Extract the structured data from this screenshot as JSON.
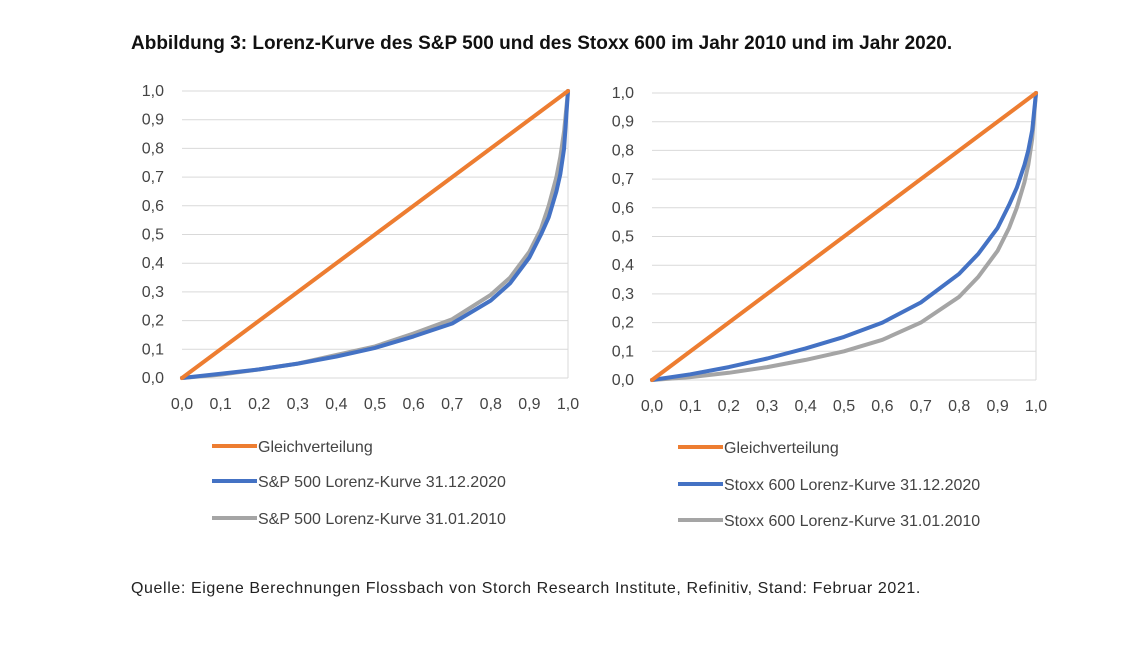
{
  "title": "Abbildung 3: Lorenz-Kurve des S&P 500 und des Stoxx 600 im Jahr 2010 und im Jahr 2020.",
  "source": "Quelle: Eigene Berechnungen Flossbach von Storch Research Institute, Refinitiv, Stand: Februar 2021.",
  "colors": {
    "equal": "#ED7D31",
    "recent": "#4472C4",
    "old": "#A5A5A5",
    "grid": "#D9D9D9"
  },
  "chart_data": [
    {
      "type": "line",
      "xlim": [
        0,
        1
      ],
      "ylim": [
        0,
        1
      ],
      "x_ticks": [
        "0,0",
        "0,1",
        "0,2",
        "0,3",
        "0,4",
        "0,5",
        "0,6",
        "0,7",
        "0,8",
        "0,9",
        "1,0"
      ],
      "y_ticks": [
        "0,0",
        "0,1",
        "0,2",
        "0,3",
        "0,4",
        "0,5",
        "0,6",
        "0,7",
        "0,8",
        "0,9",
        "1,0"
      ],
      "grid": true,
      "legend_position": "bottom",
      "series": [
        {
          "name": "Gleichverteilung",
          "color": "#ED7D31",
          "x": [
            0,
            1
          ],
          "y": [
            0,
            1
          ]
        },
        {
          "name": "S&P 500 Lorenz-Kurve 31.12.2020",
          "color": "#4472C4",
          "x": [
            0,
            0.1,
            0.2,
            0.3,
            0.4,
            0.5,
            0.6,
            0.7,
            0.8,
            0.85,
            0.9,
            0.93,
            0.95,
            0.97,
            0.98,
            0.99,
            1.0
          ],
          "y": [
            0,
            0.015,
            0.03,
            0.05,
            0.075,
            0.105,
            0.145,
            0.19,
            0.27,
            0.33,
            0.42,
            0.5,
            0.56,
            0.65,
            0.71,
            0.8,
            1.0
          ]
        },
        {
          "name": "S&P 500 Lorenz-Kurve 31.01.2010",
          "color": "#A5A5A5",
          "x": [
            0,
            0.1,
            0.2,
            0.3,
            0.4,
            0.5,
            0.6,
            0.7,
            0.8,
            0.85,
            0.9,
            0.93,
            0.95,
            0.97,
            0.98,
            0.99,
            1.0
          ],
          "y": [
            0,
            0.012,
            0.03,
            0.05,
            0.08,
            0.11,
            0.155,
            0.205,
            0.29,
            0.35,
            0.44,
            0.52,
            0.6,
            0.7,
            0.77,
            0.86,
            1.0
          ]
        }
      ]
    },
    {
      "type": "line",
      "xlim": [
        0,
        1
      ],
      "ylim": [
        0,
        1
      ],
      "x_ticks": [
        "0,0",
        "0,1",
        "0,2",
        "0,3",
        "0,4",
        "0,5",
        "0,6",
        "0,7",
        "0,8",
        "0,9",
        "1,0"
      ],
      "y_ticks": [
        "0,0",
        "0,1",
        "0,2",
        "0,3",
        "0,4",
        "0,5",
        "0,6",
        "0,7",
        "0,8",
        "0,9",
        "1,0"
      ],
      "grid": true,
      "legend_position": "bottom",
      "series": [
        {
          "name": "Gleichverteilung",
          "color": "#ED7D31",
          "x": [
            0,
            1
          ],
          "y": [
            0,
            1
          ]
        },
        {
          "name": "Stoxx 600 Lorenz-Kurve 31.12.2020",
          "color": "#4472C4",
          "x": [
            0,
            0.1,
            0.2,
            0.3,
            0.4,
            0.5,
            0.6,
            0.7,
            0.8,
            0.85,
            0.9,
            0.93,
            0.95,
            0.97,
            0.98,
            0.99,
            1.0
          ],
          "y": [
            0,
            0.02,
            0.045,
            0.075,
            0.11,
            0.15,
            0.2,
            0.27,
            0.37,
            0.44,
            0.53,
            0.61,
            0.67,
            0.75,
            0.8,
            0.87,
            1.0
          ]
        },
        {
          "name": "Stoxx 600 Lorenz-Kurve 31.01.2010",
          "color": "#A5A5A5",
          "x": [
            0,
            0.1,
            0.2,
            0.3,
            0.4,
            0.5,
            0.6,
            0.7,
            0.8,
            0.85,
            0.9,
            0.93,
            0.95,
            0.97,
            0.98,
            0.99,
            1.0
          ],
          "y": [
            0,
            0.01,
            0.025,
            0.045,
            0.07,
            0.1,
            0.14,
            0.2,
            0.29,
            0.36,
            0.45,
            0.53,
            0.6,
            0.69,
            0.75,
            0.84,
            1.0
          ]
        }
      ]
    }
  ]
}
